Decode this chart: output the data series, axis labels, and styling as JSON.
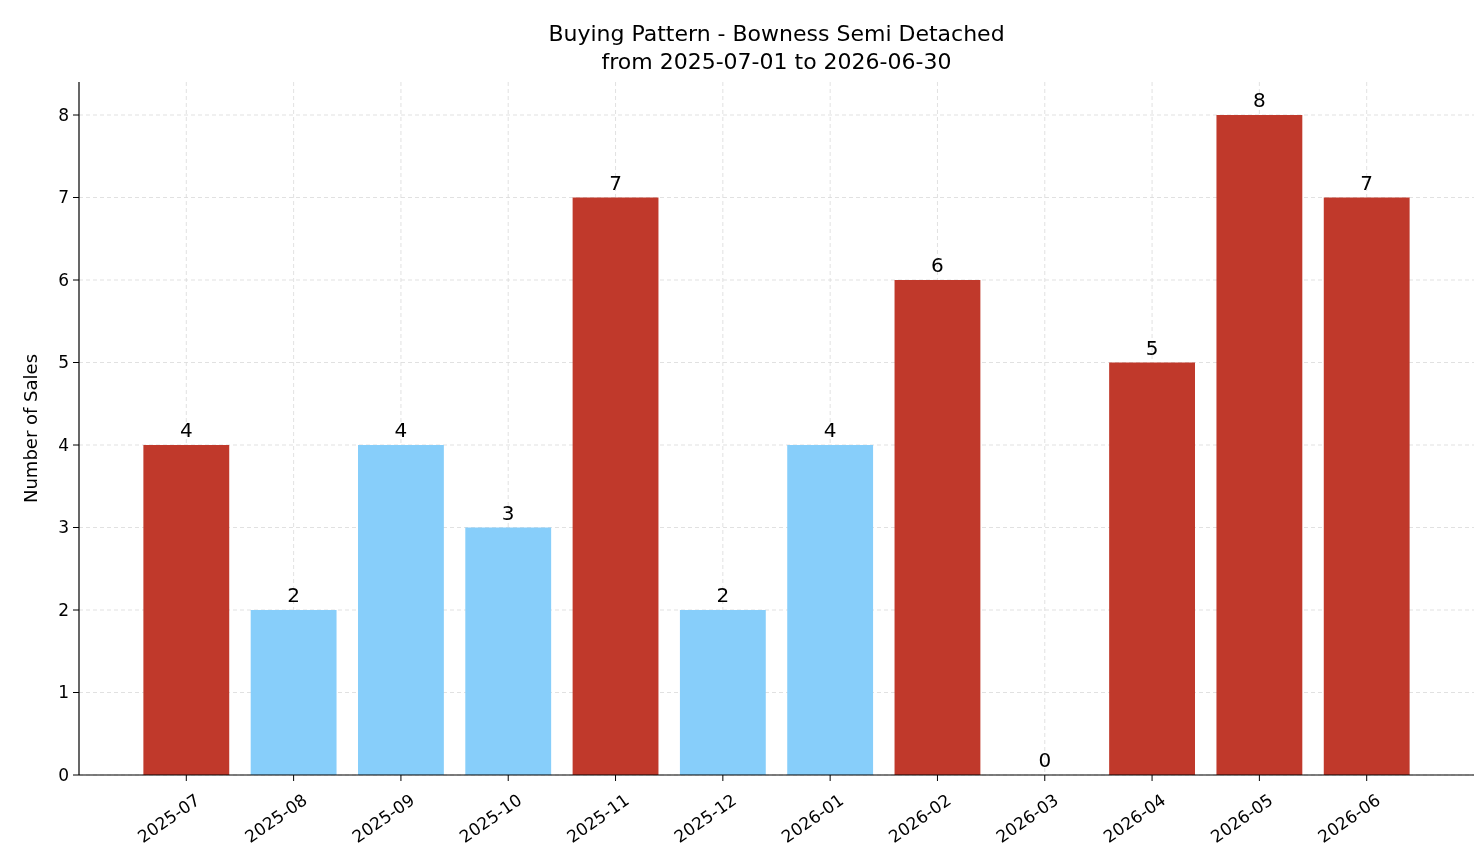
{
  "chart_data": {
    "type": "bar",
    "title": "Buying Pattern - Bowness Semi Detached",
    "subtitle": "from 2025-07-01 to 2026-06-30",
    "ylabel": "Number of Sales",
    "categories": [
      "2025-07",
      "2025-08",
      "2025-09",
      "2025-10",
      "2025-11",
      "2025-12",
      "2026-01",
      "2026-02",
      "2026-03",
      "2026-04",
      "2026-05",
      "2026-06"
    ],
    "values": [
      4,
      2,
      4,
      3,
      7,
      2,
      4,
      6,
      0,
      5,
      8,
      7
    ],
    "colors": [
      "#c0392b",
      "#87cefa",
      "#87cefa",
      "#87cefa",
      "#c0392b",
      "#87cefa",
      "#87cefa",
      "#c0392b",
      "#c0392b",
      "#c0392b",
      "#c0392b",
      "#c0392b"
    ],
    "ylim": [
      0,
      8.4
    ],
    "yticks": [
      0,
      1,
      2,
      3,
      4,
      5,
      6,
      7,
      8
    ],
    "grid": true,
    "data_labels": true
  }
}
